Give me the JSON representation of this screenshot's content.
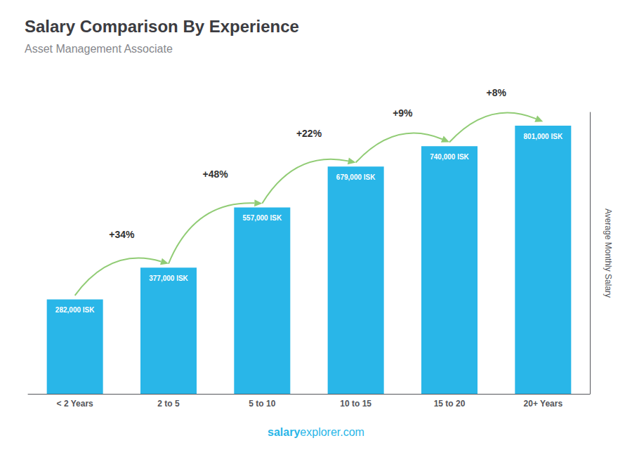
{
  "chart_data": {
    "type": "bar",
    "title": "Salary Comparison By Experience",
    "subtitle": "Asset Management Associate",
    "categories": [
      "< 2 Years",
      "2 to 5",
      "5 to 10",
      "10 to 15",
      "15 to 20",
      "20+ Years"
    ],
    "values": [
      282000,
      377000,
      557000,
      679000,
      740000,
      801000
    ],
    "value_labels": [
      "282,000 ISK",
      "377,000 ISK",
      "557,000 ISK",
      "679,000 ISK",
      "740,000 ISK",
      "801,000 ISK"
    ],
    "data_labels": true,
    "color": "#29b6e8",
    "ylabel": "Average Monthly Salary",
    "ylim": [
      0,
      841050
    ],
    "tick_labels": "x",
    "grid": false,
    "annotations": [
      "+34%",
      "+48%",
      "+22%",
      "+9%",
      "+8%"
    ],
    "watermark": [
      "salary",
      "explorer.com"
    ]
  }
}
